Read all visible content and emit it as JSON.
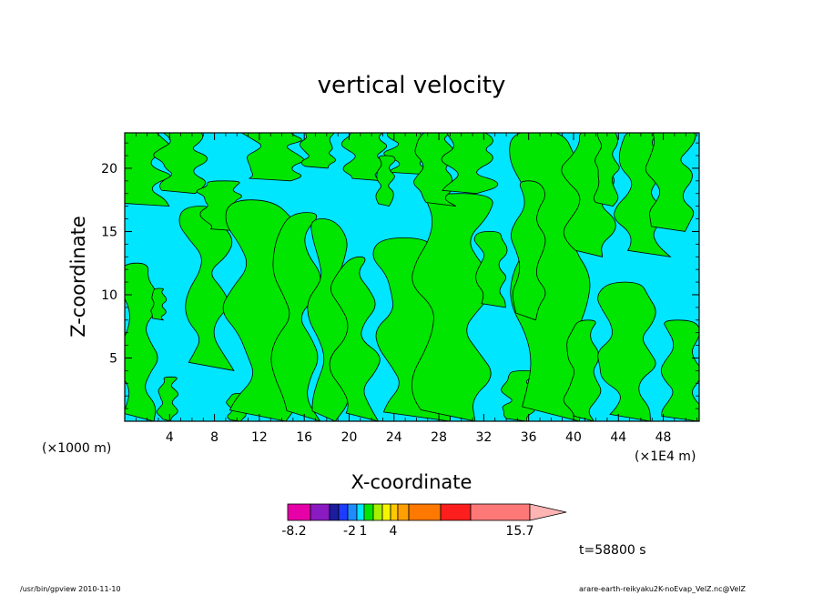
{
  "chart_data": {
    "type": "heatmap",
    "title": "vertical velocity",
    "xlabel": "X-coordinate",
    "ylabel": "Z-coordinate",
    "x_unit": "(×1E4 m)",
    "y_unit": "(×1000 m)",
    "xlim": [
      0,
      51.2
    ],
    "ylim": [
      0,
      22.8
    ],
    "x_ticks": [
      4,
      8,
      12,
      16,
      20,
      24,
      28,
      32,
      36,
      40,
      44,
      48
    ],
    "y_ticks": [
      5,
      10,
      15,
      20
    ],
    "time_label": "t=58800 s",
    "colorbar": {
      "colors": [
        "#e600a8",
        "#8a1ac2",
        "#1c1ca0",
        "#1e3cff",
        "#1e8cff",
        "#00e6ff",
        "#00e600",
        "#a8f000",
        "#f5f500",
        "#ffc800",
        "#ffa000",
        "#ff7800",
        "#ff1e1e",
        "#ff7878",
        "#ffb4b4"
      ],
      "tick_labels": [
        "-8.2",
        "-2",
        "1",
        "4",
        "15.7"
      ],
      "tick_levels": [
        -8.2,
        -2,
        1,
        4,
        15.7
      ]
    },
    "visible_fill_colors": {
      "negative": "#00e6ff",
      "positive": "#00e600"
    }
  },
  "footer": {
    "left": "/usr/bin/gpview   2010-11-10",
    "right": "arare-earth-reikyaku2K-noEvap_VelZ.nc@VelZ"
  }
}
